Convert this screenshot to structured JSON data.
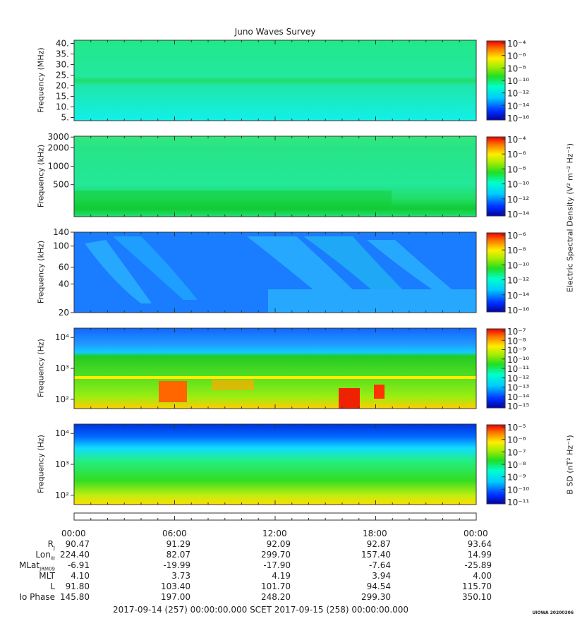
{
  "title": "Juno Waves Survey",
  "credit": "UIOWA 20200306",
  "colorbar_labels": {
    "e": "Electric Spectral Density (V² m⁻² Hz⁻¹)",
    "b": "B SD (nT² Hz⁻¹)"
  },
  "chart_data": [
    {
      "type": "heatmap",
      "panel": "1",
      "ylabel": "Frequency (MHz)",
      "yscale": "linear",
      "ylim": [
        3.5,
        41.5
      ],
      "yticks": [
        5,
        10,
        15,
        20,
        25,
        30,
        35,
        40
      ],
      "ytick_labels": [
        "5.",
        "10.",
        "15.",
        "20.",
        "25.",
        "30.",
        "35.",
        "40."
      ],
      "colorbar_ticks": [
        "10⁻⁴",
        "10⁻⁶",
        "10⁻⁸",
        "10⁻¹⁰",
        "10⁻¹²",
        "10⁻¹⁴",
        "10⁻¹⁶"
      ]
    },
    {
      "type": "heatmap",
      "panel": "2",
      "ylabel": "Frequency (kHz)",
      "yscale": "log",
      "ylim": [
        150,
        3100
      ],
      "yticks": [
        500,
        1000,
        2000,
        3000
      ],
      "ytick_labels": [
        "500",
        "1000",
        "2000",
        "3000"
      ],
      "colorbar_ticks": [
        "10⁻⁴",
        "10⁻⁶",
        "10⁻⁸",
        "10⁻¹⁰",
        "10⁻¹²",
        "10⁻¹⁴"
      ]
    },
    {
      "type": "heatmap",
      "panel": "3",
      "ylabel": "Frequency (kHz)",
      "yscale": "log",
      "ylim": [
        20,
        140
      ],
      "yticks": [
        20,
        40,
        60,
        100,
        140
      ],
      "ytick_labels": [
        "20",
        "40",
        "60",
        "100",
        "140"
      ],
      "colorbar_ticks": [
        "10⁻⁶",
        "10⁻⁸",
        "10⁻¹⁰",
        "10⁻¹²",
        "10⁻¹⁴",
        "10⁻¹⁶"
      ]
    },
    {
      "type": "heatmap",
      "panel": "4",
      "ylabel": "Frequency (Hz)",
      "yscale": "log",
      "ylim": [
        50,
        20000
      ],
      "yticks": [
        100,
        1000,
        10000
      ],
      "ytick_labels": [
        "10²",
        "10³",
        "10⁴"
      ],
      "colorbar_ticks": [
        "10⁻⁷",
        "10⁻⁸",
        "10⁻⁹",
        "10⁻¹⁰",
        "10⁻¹¹",
        "10⁻¹²",
        "10⁻¹³",
        "10⁻¹⁴",
        "10⁻¹⁵"
      ]
    },
    {
      "type": "heatmap",
      "panel": "5",
      "ylabel": "Frequency (Hz)",
      "yscale": "log",
      "ylim": [
        50,
        20000
      ],
      "yticks": [
        100,
        1000,
        10000
      ],
      "ytick_labels": [
        "10²",
        "10³",
        "10⁴"
      ],
      "colorbar_ticks": [
        "10⁻⁵",
        "10⁻⁶",
        "10⁻⁷",
        "10⁻⁸",
        "10⁻⁹",
        "10⁻¹⁰",
        "10⁻¹¹"
      ]
    }
  ],
  "time_axis": {
    "labels": [
      "00:00",
      "06:00",
      "12:00",
      "18:00",
      "00:00"
    ],
    "footer": "2017-09-14 (257) 00:00:00.000     SCET     2017-09-15 (258) 00:00:00.000"
  },
  "ephemeris": [
    {
      "name": "R",
      "sub": "J",
      "values": [
        "90.47",
        "91.29",
        "92.09",
        "92.87",
        "93.64"
      ]
    },
    {
      "name": "Lon",
      "sub": "III",
      "values": [
        "224.40",
        "82.07",
        "299.70",
        "157.40",
        "14.99"
      ]
    },
    {
      "name": "MLat",
      "sub": "JRM09",
      "values": [
        "-6.91",
        "-19.99",
        "-17.90",
        "-7.64",
        "-25.89"
      ]
    },
    {
      "name": "MLT",
      "sub": "",
      "values": [
        "4.10",
        "3.73",
        "4.19",
        "3.94",
        "4.00"
      ]
    },
    {
      "name": "L",
      "sub": "",
      "values": [
        "91.80",
        "103.40",
        "101.70",
        "94.54",
        "115.70"
      ]
    },
    {
      "name": "Io Phase",
      "sub": "",
      "values": [
        "145.80",
        "197.00",
        "248.20",
        "299.30",
        "350.10"
      ]
    }
  ]
}
